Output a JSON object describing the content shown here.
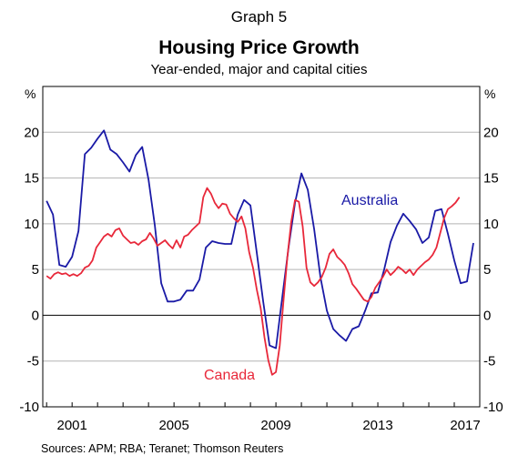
{
  "chart_data": {
    "type": "line",
    "graph_label": "Graph 5",
    "title": "Housing Price Growth",
    "subtitle": "Year-ended, major and capital cities",
    "y_unit_left": "%",
    "y_unit_right": "%",
    "ylim": [
      -10,
      25
    ],
    "yticks": [
      -10,
      -5,
      0,
      5,
      10,
      15,
      20
    ],
    "xlim": [
      1999.85,
      2017.0
    ],
    "xticks": [
      {
        "value": 2001.0,
        "label": "2001"
      },
      {
        "value": 2005.0,
        "label": "2005"
      },
      {
        "value": 2009.0,
        "label": "2009"
      },
      {
        "value": 2013.0,
        "label": "2013"
      },
      {
        "value": 2017.0,
        "label": "2017"
      }
    ],
    "grid": "horizontal",
    "zero_line": true,
    "source": "Sources:   APM; RBA; Teranet; Thomson Reuters",
    "series": [
      {
        "name": "Australia",
        "color": "#1a1aa6",
        "label_position": "right-mid",
        "points": [
          [
            2000.0,
            12.5
          ],
          [
            2000.25,
            11.0
          ],
          [
            2000.5,
            5.5
          ],
          [
            2000.75,
            5.3
          ],
          [
            2001.0,
            6.4
          ],
          [
            2001.25,
            9.2
          ],
          [
            2001.5,
            17.6
          ],
          [
            2001.75,
            18.3
          ],
          [
            2002.0,
            19.3
          ],
          [
            2002.25,
            20.2
          ],
          [
            2002.5,
            18.1
          ],
          [
            2002.75,
            17.6
          ],
          [
            2003.0,
            16.7
          ],
          [
            2003.25,
            15.7
          ],
          [
            2003.5,
            17.5
          ],
          [
            2003.75,
            18.4
          ],
          [
            2004.0,
            14.8
          ],
          [
            2004.25,
            9.8
          ],
          [
            2004.5,
            3.5
          ],
          [
            2004.75,
            1.5
          ],
          [
            2005.0,
            1.5
          ],
          [
            2005.25,
            1.7
          ],
          [
            2005.5,
            2.7
          ],
          [
            2005.75,
            2.7
          ],
          [
            2006.0,
            3.9
          ],
          [
            2006.25,
            7.4
          ],
          [
            2006.5,
            8.1
          ],
          [
            2006.75,
            7.9
          ],
          [
            2007.0,
            7.8
          ],
          [
            2007.25,
            7.8
          ],
          [
            2007.5,
            11.0
          ],
          [
            2007.75,
            12.6
          ],
          [
            2008.0,
            12.0
          ],
          [
            2008.25,
            6.8
          ],
          [
            2008.5,
            1.5
          ],
          [
            2008.75,
            -3.3
          ],
          [
            2009.0,
            -3.6
          ],
          [
            2009.25,
            2.0
          ],
          [
            2009.5,
            7.5
          ],
          [
            2009.75,
            12.3
          ],
          [
            2010.0,
            15.5
          ],
          [
            2010.25,
            13.7
          ],
          [
            2010.5,
            9.4
          ],
          [
            2010.75,
            4.1
          ],
          [
            2011.0,
            0.5
          ],
          [
            2011.25,
            -1.5
          ],
          [
            2011.5,
            -2.2
          ],
          [
            2011.75,
            -2.8
          ],
          [
            2012.0,
            -1.5
          ],
          [
            2012.25,
            -1.2
          ],
          [
            2012.5,
            0.5
          ],
          [
            2012.75,
            2.4
          ],
          [
            2013.0,
            2.5
          ],
          [
            2013.25,
            5.0
          ],
          [
            2013.5,
            8.0
          ],
          [
            2013.75,
            9.8
          ],
          [
            2014.0,
            11.1
          ],
          [
            2014.25,
            10.3
          ],
          [
            2014.5,
            9.4
          ],
          [
            2014.75,
            7.9
          ],
          [
            2015.0,
            8.5
          ],
          [
            2015.25,
            11.4
          ],
          [
            2015.5,
            11.6
          ],
          [
            2015.75,
            8.9
          ],
          [
            2016.0,
            6.0
          ],
          [
            2016.25,
            3.5
          ],
          [
            2016.5,
            3.7
          ],
          [
            2016.75,
            7.9
          ]
        ]
      },
      {
        "name": "Canada",
        "color": "#e8283a",
        "label_position": "bottom-mid",
        "points": [
          [
            2000.0,
            4.3
          ],
          [
            2000.15,
            4.0
          ],
          [
            2000.3,
            4.5
          ],
          [
            2000.45,
            4.7
          ],
          [
            2000.6,
            4.5
          ],
          [
            2000.75,
            4.6
          ],
          [
            2000.9,
            4.3
          ],
          [
            2001.05,
            4.5
          ],
          [
            2001.2,
            4.3
          ],
          [
            2001.35,
            4.6
          ],
          [
            2001.5,
            5.2
          ],
          [
            2001.65,
            5.4
          ],
          [
            2001.8,
            6.0
          ],
          [
            2001.95,
            7.4
          ],
          [
            2002.1,
            8.0
          ],
          [
            2002.25,
            8.6
          ],
          [
            2002.4,
            8.9
          ],
          [
            2002.55,
            8.6
          ],
          [
            2002.7,
            9.3
          ],
          [
            2002.85,
            9.5
          ],
          [
            2003.0,
            8.7
          ],
          [
            2003.15,
            8.3
          ],
          [
            2003.3,
            7.9
          ],
          [
            2003.45,
            8.0
          ],
          [
            2003.6,
            7.7
          ],
          [
            2003.75,
            8.1
          ],
          [
            2003.9,
            8.3
          ],
          [
            2004.05,
            9.0
          ],
          [
            2004.2,
            8.4
          ],
          [
            2004.35,
            7.6
          ],
          [
            2004.5,
            7.9
          ],
          [
            2004.65,
            8.2
          ],
          [
            2004.8,
            7.7
          ],
          [
            2004.95,
            7.3
          ],
          [
            2005.1,
            8.2
          ],
          [
            2005.25,
            7.4
          ],
          [
            2005.4,
            8.6
          ],
          [
            2005.55,
            8.8
          ],
          [
            2005.7,
            9.3
          ],
          [
            2005.85,
            9.7
          ],
          [
            2006.0,
            10.1
          ],
          [
            2006.15,
            12.9
          ],
          [
            2006.3,
            13.9
          ],
          [
            2006.45,
            13.3
          ],
          [
            2006.6,
            12.3
          ],
          [
            2006.75,
            11.7
          ],
          [
            2006.9,
            12.2
          ],
          [
            2007.05,
            12.1
          ],
          [
            2007.2,
            11.1
          ],
          [
            2007.35,
            10.6
          ],
          [
            2007.5,
            10.2
          ],
          [
            2007.65,
            10.8
          ],
          [
            2007.8,
            9.5
          ],
          [
            2007.95,
            6.9
          ],
          [
            2008.1,
            5.2
          ],
          [
            2008.25,
            2.8
          ],
          [
            2008.4,
            0.8
          ],
          [
            2008.55,
            -2.4
          ],
          [
            2008.7,
            -4.9
          ],
          [
            2008.85,
            -6.5
          ],
          [
            2009.0,
            -6.2
          ],
          [
            2009.15,
            -3.3
          ],
          [
            2009.3,
            1.7
          ],
          [
            2009.45,
            6.4
          ],
          [
            2009.6,
            10.2
          ],
          [
            2009.75,
            12.6
          ],
          [
            2009.9,
            12.4
          ],
          [
            2010.05,
            9.7
          ],
          [
            2010.2,
            5.2
          ],
          [
            2010.35,
            3.6
          ],
          [
            2010.5,
            3.2
          ],
          [
            2010.65,
            3.6
          ],
          [
            2010.8,
            4.2
          ],
          [
            2010.95,
            5.2
          ],
          [
            2011.1,
            6.7
          ],
          [
            2011.25,
            7.2
          ],
          [
            2011.4,
            6.4
          ],
          [
            2011.55,
            6.0
          ],
          [
            2011.7,
            5.5
          ],
          [
            2011.85,
            4.6
          ],
          [
            2012.0,
            3.4
          ],
          [
            2012.15,
            2.9
          ],
          [
            2012.3,
            2.3
          ],
          [
            2012.45,
            1.7
          ],
          [
            2012.6,
            1.5
          ],
          [
            2012.75,
            2.0
          ],
          [
            2012.9,
            3.0
          ],
          [
            2013.05,
            3.6
          ],
          [
            2013.2,
            4.2
          ],
          [
            2013.35,
            5.0
          ],
          [
            2013.5,
            4.4
          ],
          [
            2013.65,
            4.8
          ],
          [
            2013.8,
            5.3
          ],
          [
            2013.95,
            5.0
          ],
          [
            2014.1,
            4.6
          ],
          [
            2014.25,
            5.0
          ],
          [
            2014.4,
            4.4
          ],
          [
            2014.55,
            5.0
          ],
          [
            2014.7,
            5.4
          ],
          [
            2014.85,
            5.8
          ],
          [
            2015.0,
            6.1
          ],
          [
            2015.15,
            6.6
          ],
          [
            2015.3,
            7.4
          ],
          [
            2015.45,
            9.0
          ],
          [
            2015.6,
            10.6
          ],
          [
            2015.75,
            11.6
          ],
          [
            2015.9,
            11.9
          ],
          [
            2016.05,
            12.3
          ],
          [
            2016.2,
            12.9
          ]
        ]
      }
    ]
  }
}
